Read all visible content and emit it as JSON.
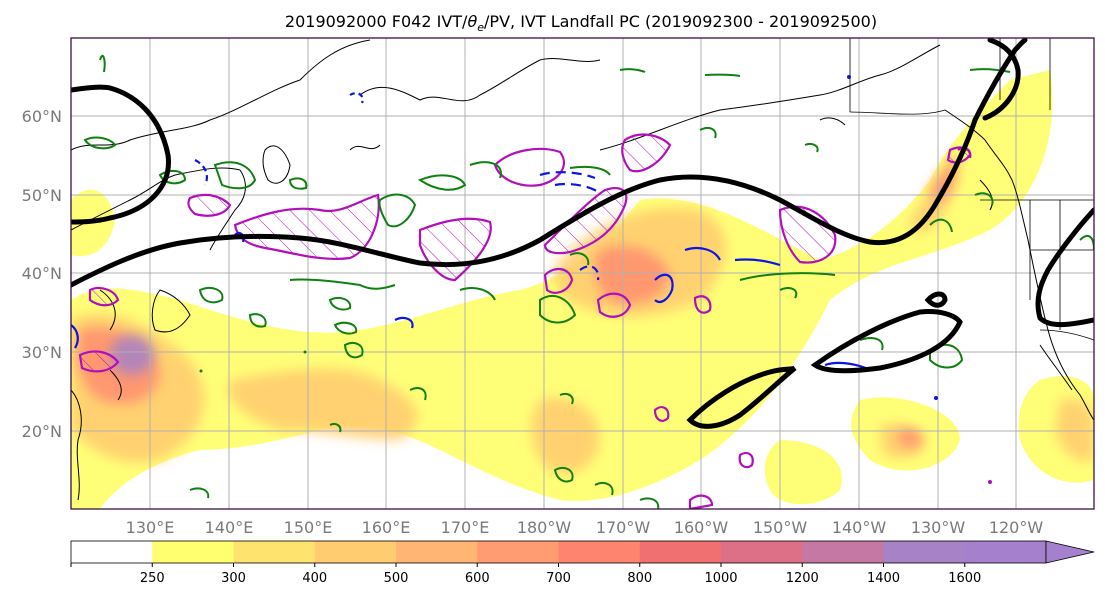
{
  "title": "2019092000 F042 IVT/θe/PV, IVT Landfall PC (2019092300 - 2019092500)",
  "title_parts": {
    "prefix": "2019092000 F042 IVT/",
    "theta": "θ",
    "theta_sub": "e",
    "suffix": "/PV, IVT Landfall PC (2019092300 - 2019092500)"
  },
  "latitude_labels": [
    {
      "label": "20°N",
      "value": 20
    },
    {
      "label": "30°N",
      "value": 30
    },
    {
      "label": "40°N",
      "value": 40
    },
    {
      "label": "50°N",
      "value": 50
    },
    {
      "label": "60°N",
      "value": 60
    }
  ],
  "longitude_labels": [
    {
      "label": "130°E",
      "value": 130
    },
    {
      "label": "140°E",
      "value": 140
    },
    {
      "label": "150°E",
      "value": 150
    },
    {
      "label": "160°E",
      "value": 160
    },
    {
      "label": "170°E",
      "value": 170
    },
    {
      "label": "180°W",
      "value": 180
    },
    {
      "label": "170°W",
      "value": 190
    },
    {
      "label": "160°W",
      "value": 200
    },
    {
      "label": "150°W",
      "value": 210
    },
    {
      "label": "140°W",
      "value": 220
    },
    {
      "label": "130°W",
      "value": 230
    },
    {
      "label": "120°W",
      "value": 240
    }
  ],
  "map_extent": {
    "lon_min": 120,
    "lon_max": 250,
    "lat_min": 10,
    "lat_max": 70
  },
  "colorbar": {
    "levels": [
      "250",
      "300",
      "400",
      "500",
      "600",
      "700",
      "800",
      "1000",
      "1200",
      "1400",
      "1600"
    ],
    "colors": [
      "#ffffff",
      "#ffff70",
      "#ffe36f",
      "#ffcd70",
      "#ffb672",
      "#ff9c72",
      "#ff8470",
      "#f07072",
      "#dd6f87",
      "#c678a4",
      "#a782c6",
      "#a580cc"
    ],
    "extend": "max"
  },
  "colors": {
    "jet_contour": "#000000",
    "green_contour": "#108010",
    "blue_contour": "#0b16e0",
    "magenta_contour": "#b20fbb",
    "grid": "#b0b0b0",
    "frame": "#3a1040",
    "coast": "#000000"
  }
}
